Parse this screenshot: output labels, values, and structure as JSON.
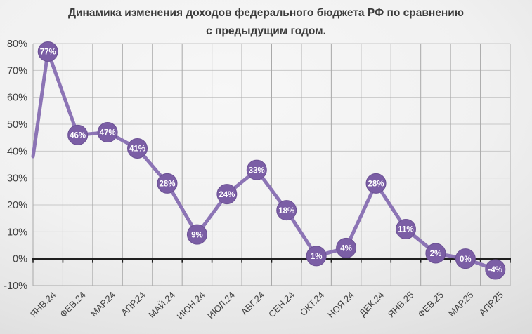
{
  "chart_data": {
    "type": "line",
    "title": "Динамика изменения доходов федерального бюджета РФ по сравнению с предыдущим годом.",
    "categories": [
      "ЯНВ.24",
      "ФЕВ.24",
      "МАР.24",
      "АПР.24",
      "МАЙ.24",
      "ИЮН.24",
      "ИЮЛ.24",
      "АВГ.24",
      "СЕН.24",
      "ОКТ.24",
      "НОЯ.24",
      "ДЕК.24",
      "ЯНВ.25",
      "ФЕВ.25",
      "МАР.25",
      "АПР.25"
    ],
    "values": [
      77,
      46,
      47,
      41,
      28,
      9,
      24,
      33,
      18,
      1,
      4,
      28,
      11,
      2,
      0,
      -4
    ],
    "data_labels": [
      "77%",
      "46%",
      "47%",
      "41%",
      "28%",
      "9%",
      "24%",
      "33%",
      "18%",
      "1%",
      "4%",
      "28%",
      "11%",
      "2%",
      "0%",
      "-4%"
    ],
    "edge_leadin_value": 38,
    "ylim": [
      -10,
      80
    ],
    "y_tick_step": 10,
    "y_tick_labels": [
      "80%",
      "70%",
      "60%",
      "50%",
      "40%",
      "30%",
      "20%",
      "10%",
      "0%",
      "-10%"
    ],
    "xlabel": "",
    "ylabel": "",
    "grid": "both",
    "legend": "none",
    "colors": {
      "line": "#8C74B5",
      "marker_fill": "#7B5EA5",
      "marker_stroke": "#6B5094",
      "marker_label": "#FFFFFF",
      "grid_horizontal": "#C8C8C8",
      "grid_vertical": "#A9A9A9",
      "zero_axis": "#1F1F1F",
      "axis_text": "#3F3F3F",
      "title_text": "#3C3C3C"
    }
  }
}
